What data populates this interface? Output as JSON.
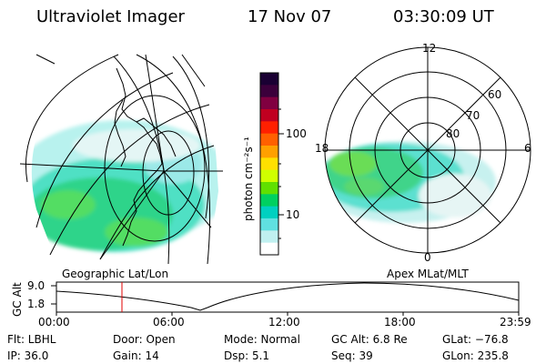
{
  "header": {
    "instrument": "Ultraviolet Imager",
    "date": "17 Nov 07",
    "time": "03:30:09 UT"
  },
  "geo_map": {
    "caption": "Geographic Lat/Lon"
  },
  "polar_map": {
    "caption": "Apex MLat/MLT",
    "mlt_labels": [
      "12",
      "18",
      "6",
      "0"
    ],
    "lat_labels": [
      "60",
      "70",
      "80"
    ]
  },
  "colorbar": {
    "label": "photon cm⁻²s⁻¹",
    "ticks": [
      "100",
      "10"
    ],
    "colors": [
      "#1a0033",
      "#3b003b",
      "#800040",
      "#c00020",
      "#ff2000",
      "#ff6000",
      "#ffa000",
      "#ffe000",
      "#d0ff00",
      "#60e000",
      "#00d060",
      "#00d0c0",
      "#60e0e0",
      "#c0f0f0",
      "#ffffff"
    ]
  },
  "altitude_plot": {
    "ylabel": "GC Alt",
    "y_ticks": [
      "9.0",
      "1.8"
    ],
    "x_ticks": [
      "00:00",
      "06:00",
      "12:00",
      "18:00",
      "23:59"
    ],
    "marker_time": "03:30"
  },
  "info": {
    "flt": "Flt: LBHL",
    "ip": "IP: 36.0",
    "door": "Door: Open",
    "gain": "Gain: 14",
    "mode": "Mode: Normal",
    "dsp": "Dsp:     5.1",
    "gcalt": "GC Alt: 6.8 Re",
    "seq": "Seq: 39",
    "glat": "GLat: −76.8",
    "glon": "GLon: 235.8"
  }
}
